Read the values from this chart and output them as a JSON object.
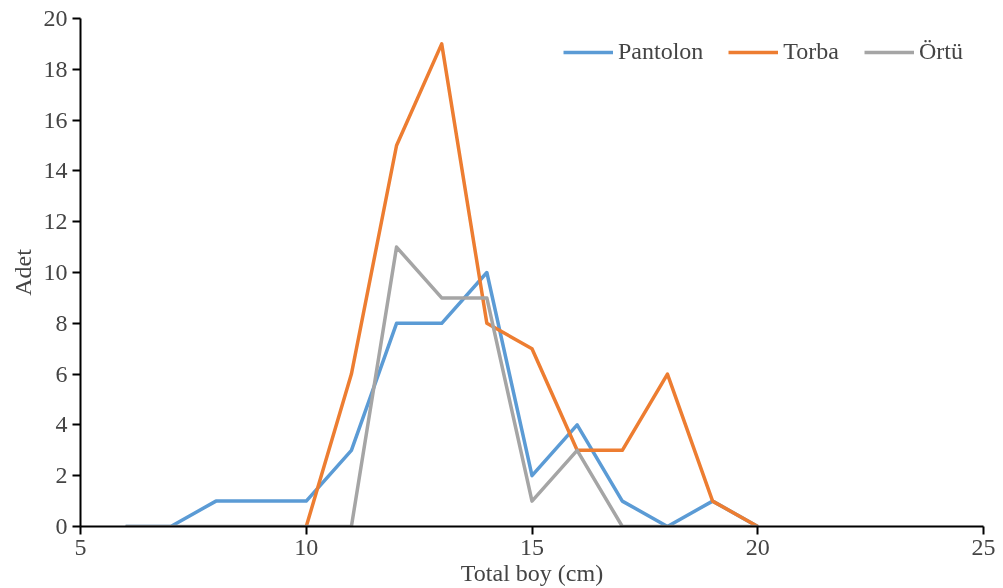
{
  "chart_data": {
    "type": "line",
    "xlabel": "Total boy (cm)",
    "ylabel": "Adet",
    "x": [
      6,
      7,
      8,
      9,
      10,
      11,
      12,
      13,
      14,
      15,
      16,
      17,
      18,
      19,
      20
    ],
    "series": [
      {
        "name": "Pantolon",
        "color": "#5b9bd5",
        "values": [
          0,
          0,
          1,
          1,
          1,
          3,
          8,
          8,
          10,
          2,
          4,
          1,
          0,
          1,
          0
        ]
      },
      {
        "name": "Torba",
        "color": "#ed7d31",
        "values": [
          null,
          null,
          null,
          null,
          0,
          6,
          15,
          19,
          8,
          7,
          3,
          3,
          6,
          1,
          0
        ]
      },
      {
        "name": "Örtü",
        "color": "#a5a5a5",
        "values": [
          0,
          0,
          0,
          0,
          0,
          0,
          11,
          9,
          9,
          1,
          3,
          0,
          0,
          0,
          0
        ]
      }
    ],
    "xlim": [
      5,
      25
    ],
    "xticks": [
      5,
      10,
      15,
      20,
      25
    ],
    "ylim": [
      0,
      20
    ],
    "yticks": [
      0,
      2,
      4,
      6,
      8,
      10,
      12,
      14,
      16,
      18,
      20
    ],
    "grid": false,
    "legend": "top right",
    "marker": "none",
    "line_style": "solid"
  }
}
